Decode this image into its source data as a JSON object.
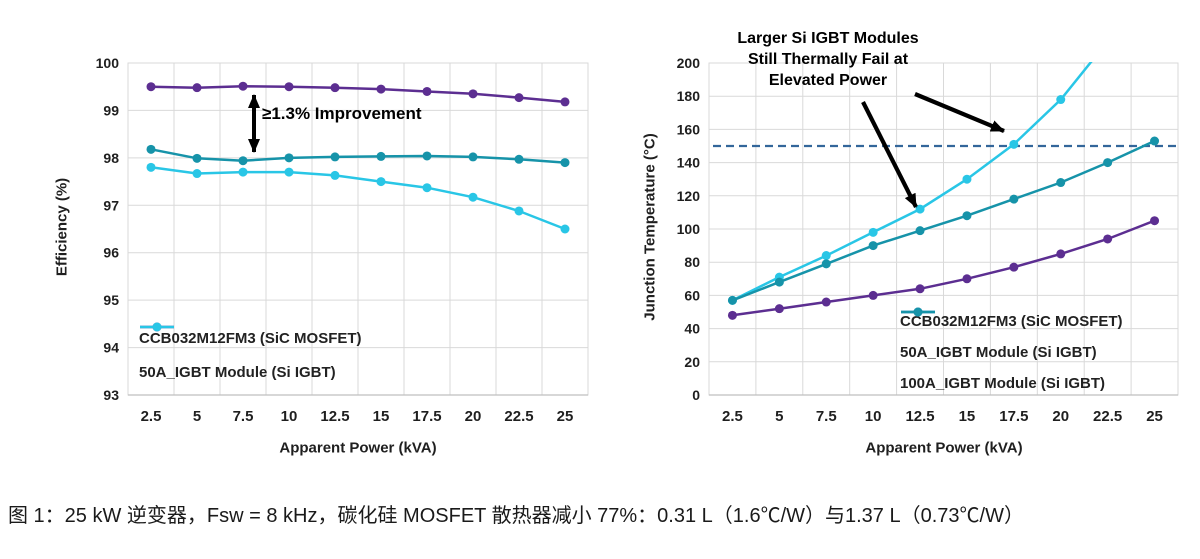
{
  "caption": "图 1：25 kW 逆变器，Fsw = 8 kHz，碳化硅 MOSFET 散热器减小 77%：0.31 L（1.6℃/W）与1.37 L（0.73℃/W）",
  "colors": {
    "purple": "#5C2E91",
    "cyan": "#29C6E6",
    "teal": "#1693A9",
    "grid": "#D9D9D9",
    "axis_line": "#BFBFBF",
    "axis_text": "#1F1F1F",
    "reference_line": "#33669A",
    "annotation": "#000000"
  },
  "chart_data": [
    {
      "type": "line",
      "title": "",
      "xlabel": "Apparent Power (kVA)",
      "ylabel": "Efficiency (%)",
      "x": [
        2.5,
        5,
        7.5,
        10,
        12.5,
        15,
        17.5,
        20,
        22.5,
        25
      ],
      "ylim": [
        93,
        100
      ],
      "ytick_step": 1,
      "grid": true,
      "legend_position": "bottom-left-inside",
      "series": [
        {
          "name": "CCB032M12FM3 (SiC MOSFET)",
          "color": "#5C2E91",
          "values": [
            99.5,
            99.48,
            99.51,
            99.5,
            99.48,
            99.45,
            99.4,
            99.35,
            99.27,
            99.18
          ]
        },
        {
          "name": "100A_IGBT Module (Si IGBT)",
          "color": "#1693A9",
          "values": [
            98.18,
            97.99,
            97.94,
            98.0,
            98.02,
            98.03,
            98.04,
            98.02,
            97.97,
            97.9
          ]
        },
        {
          "name": "50A_IGBT Module (Si IGBT)",
          "color": "#29C6E6",
          "values": [
            97.8,
            97.67,
            97.7,
            97.7,
            97.63,
            97.5,
            97.37,
            97.17,
            96.88,
            96.5
          ]
        }
      ],
      "legend_series": [
        0,
        2
      ],
      "annotation": {
        "text": "≥1.3% Improvement"
      }
    },
    {
      "type": "line",
      "title": "",
      "xlabel": "Apparent Power (kVA)",
      "ylabel": "Junction Temperature (°C)",
      "x": [
        2.5,
        5,
        7.5,
        10,
        12.5,
        15,
        17.5,
        20,
        22.5,
        25
      ],
      "ylim": [
        0,
        200
      ],
      "ytick_step": 20,
      "grid": true,
      "legend_position": "bottom-right-inside",
      "ref_line": {
        "y": 150,
        "style": "dashed",
        "color": "#33669A"
      },
      "series": [
        {
          "name": "CCB032M12FM3 (SiC MOSFET)",
          "color": "#5C2E91",
          "values": [
            48,
            52,
            56,
            60,
            64,
            70,
            77,
            85,
            94,
            105
          ]
        },
        {
          "name": "50A_IGBT Module (Si IGBT)",
          "color": "#29C6E6",
          "values": [
            57,
            71,
            84,
            98,
            112,
            130,
            151,
            178,
            213,
            null
          ]
        },
        {
          "name": "100A_IGBT Module (Si IGBT)",
          "color": "#1693A9",
          "values": [
            57,
            68,
            79,
            90,
            99,
            108,
            118,
            128,
            140,
            153
          ]
        }
      ],
      "legend_series": [
        0,
        1,
        2
      ],
      "annotation": {
        "lines": [
          "Larger Si IGBT Modules",
          "Still Thermally Fail at",
          "Elevated Power"
        ]
      }
    }
  ]
}
